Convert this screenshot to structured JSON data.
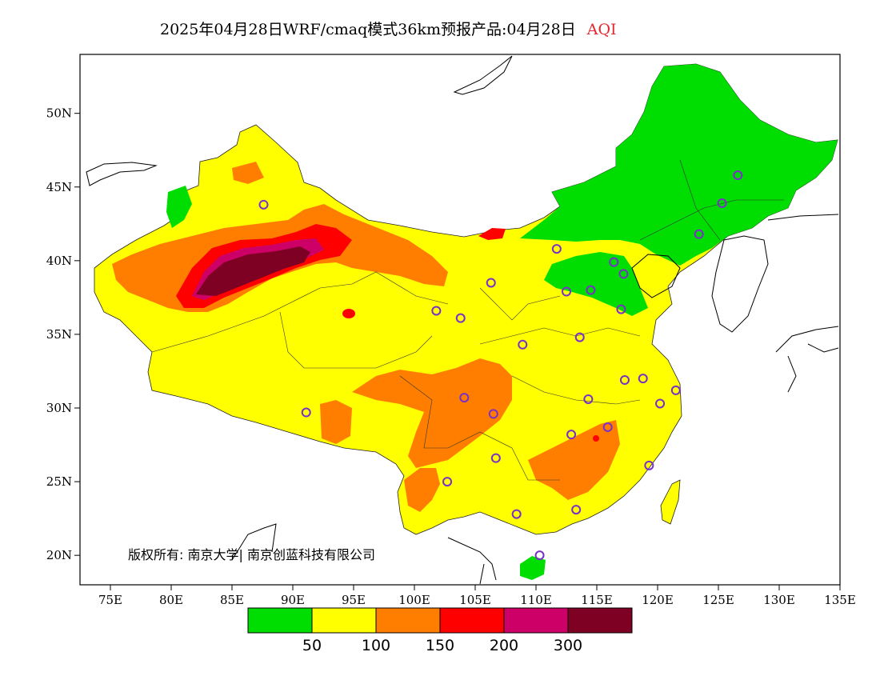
{
  "title": {
    "main": "2025年04月28日WRF/cmaq模式36km预报产品:04月28日",
    "variable": "AQI"
  },
  "copyright": "版权所有: 南京大学| 南京创蓝科技有限公司",
  "axes": {
    "x_ticks": [
      "75E",
      "80E",
      "85E",
      "90E",
      "95E",
      "100E",
      "105E",
      "110E",
      "115E",
      "120E",
      "125E",
      "130E",
      "135E"
    ],
    "y_ticks": [
      "50N",
      "45N",
      "40N",
      "35N",
      "30N",
      "25N",
      "20N"
    ],
    "lon_range": [
      72.5,
      135
    ],
    "lat_range": [
      18,
      54
    ]
  },
  "colorbar": {
    "colors": [
      "#00dd00",
      "#ffff00",
      "#ff7e00",
      "#ff0000",
      "#cc0066",
      "#7e0023"
    ],
    "labels": [
      "50",
      "100",
      "150",
      "200",
      "300"
    ]
  },
  "stations": [
    [
      87.6,
      43.8
    ],
    [
      91.1,
      29.7
    ],
    [
      101.8,
      36.6
    ],
    [
      103.8,
      36.1
    ],
    [
      106.3,
      38.5
    ],
    [
      111.7,
      40.8
    ],
    [
      112.5,
      37.9
    ],
    [
      114.5,
      38.0
    ],
    [
      116.4,
      39.9
    ],
    [
      117.2,
      39.1
    ],
    [
      117.0,
      36.7
    ],
    [
      113.6,
      34.8
    ],
    [
      108.9,
      34.3
    ],
    [
      106.5,
      29.6
    ],
    [
      104.1,
      30.7
    ],
    [
      106.7,
      26.6
    ],
    [
      102.7,
      25.0
    ],
    [
      108.4,
      22.8
    ],
    [
      113.3,
      23.1
    ],
    [
      110.3,
      20.0
    ],
    [
      112.9,
      28.2
    ],
    [
      115.9,
      28.7
    ],
    [
      114.3,
      30.6
    ],
    [
      117.3,
      31.9
    ],
    [
      118.8,
      32.0
    ],
    [
      120.2,
      30.3
    ],
    [
      121.5,
      31.2
    ],
    [
      119.3,
      26.1
    ],
    [
      123.4,
      41.8
    ],
    [
      125.3,
      43.9
    ],
    [
      126.6,
      45.8
    ]
  ]
}
